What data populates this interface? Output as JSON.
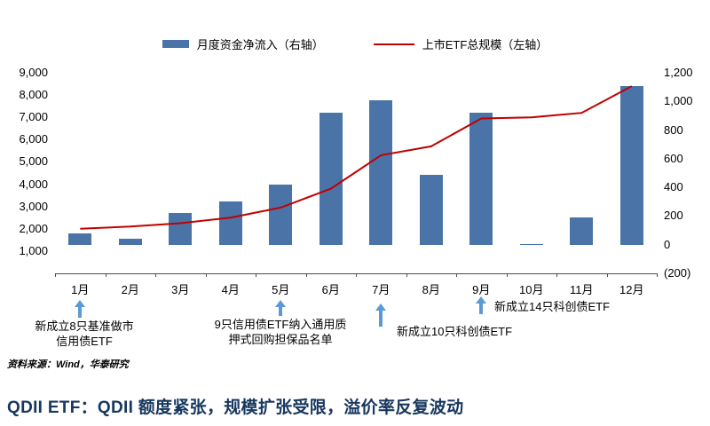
{
  "colors": {
    "bar": "#4a74a8",
    "line": "#c00000",
    "arrow": "#5b9bd5",
    "footer_title": "#17375e"
  },
  "legend": [
    {
      "label": "月度资金净流入（右轴）"
    },
    {
      "label": "上市ETF总规模（左轴）"
    }
  ],
  "chart_data": {
    "type": "bar+line combo",
    "categories": [
      "1月",
      "2月",
      "3月",
      "4月",
      "5月",
      "6月",
      "7月",
      "8月",
      "9月",
      "10月",
      "11月",
      "12月"
    ],
    "series": [
      {
        "name": "月度资金净流入（右轴）",
        "type": "bar",
        "axis": "right",
        "color": "#4a74a8",
        "values": [
          80,
          40,
          220,
          300,
          420,
          920,
          1010,
          490,
          920,
          5,
          190,
          1110
        ]
      },
      {
        "name": "上市ETF总规模（左轴）",
        "type": "line",
        "axis": "left",
        "color": "#c00000",
        "values": [
          2000,
          2100,
          2250,
          2500,
          2950,
          3800,
          5300,
          5700,
          6950,
          7000,
          7200,
          8400
        ]
      }
    ],
    "left_axis": {
      "min": 0,
      "max": 9000,
      "ticks": [
        9000,
        8000,
        7000,
        6000,
        5000,
        4000,
        3000,
        2000,
        1000
      ],
      "tick_labels": [
        "9,000",
        "8,000",
        "7,000",
        "6,000",
        "5,000",
        "4,000",
        "3,000",
        "2,000",
        "1,000"
      ]
    },
    "right_axis": {
      "min": -200,
      "max": 1200,
      "ticks": [
        1200,
        1000,
        800,
        600,
        400,
        200,
        0,
        -200
      ],
      "tick_labels": [
        "1,200",
        "1,000",
        "800",
        "600",
        "400",
        "200",
        "0",
        "(200)"
      ]
    },
    "grid": false,
    "legend_position": "top-center"
  },
  "annotations": [
    {
      "lines": [
        "新成立8只基准做市",
        "信用债ETF"
      ],
      "target": "1月"
    },
    {
      "lines": [
        "9只信用债ETF纳入通用质",
        "押式回购担保品名单"
      ],
      "target": "5月"
    },
    {
      "lines": [
        "新成立10只科创债ETF"
      ],
      "target": "7月"
    },
    {
      "lines": [
        "新成立14只科创债ETF"
      ],
      "target": "9月"
    }
  ],
  "source": "资料来源：Wind，华泰研究",
  "footer_title": "QDII ETF：QDII 额度紧张，规模扩张受限，溢价率反复波动"
}
